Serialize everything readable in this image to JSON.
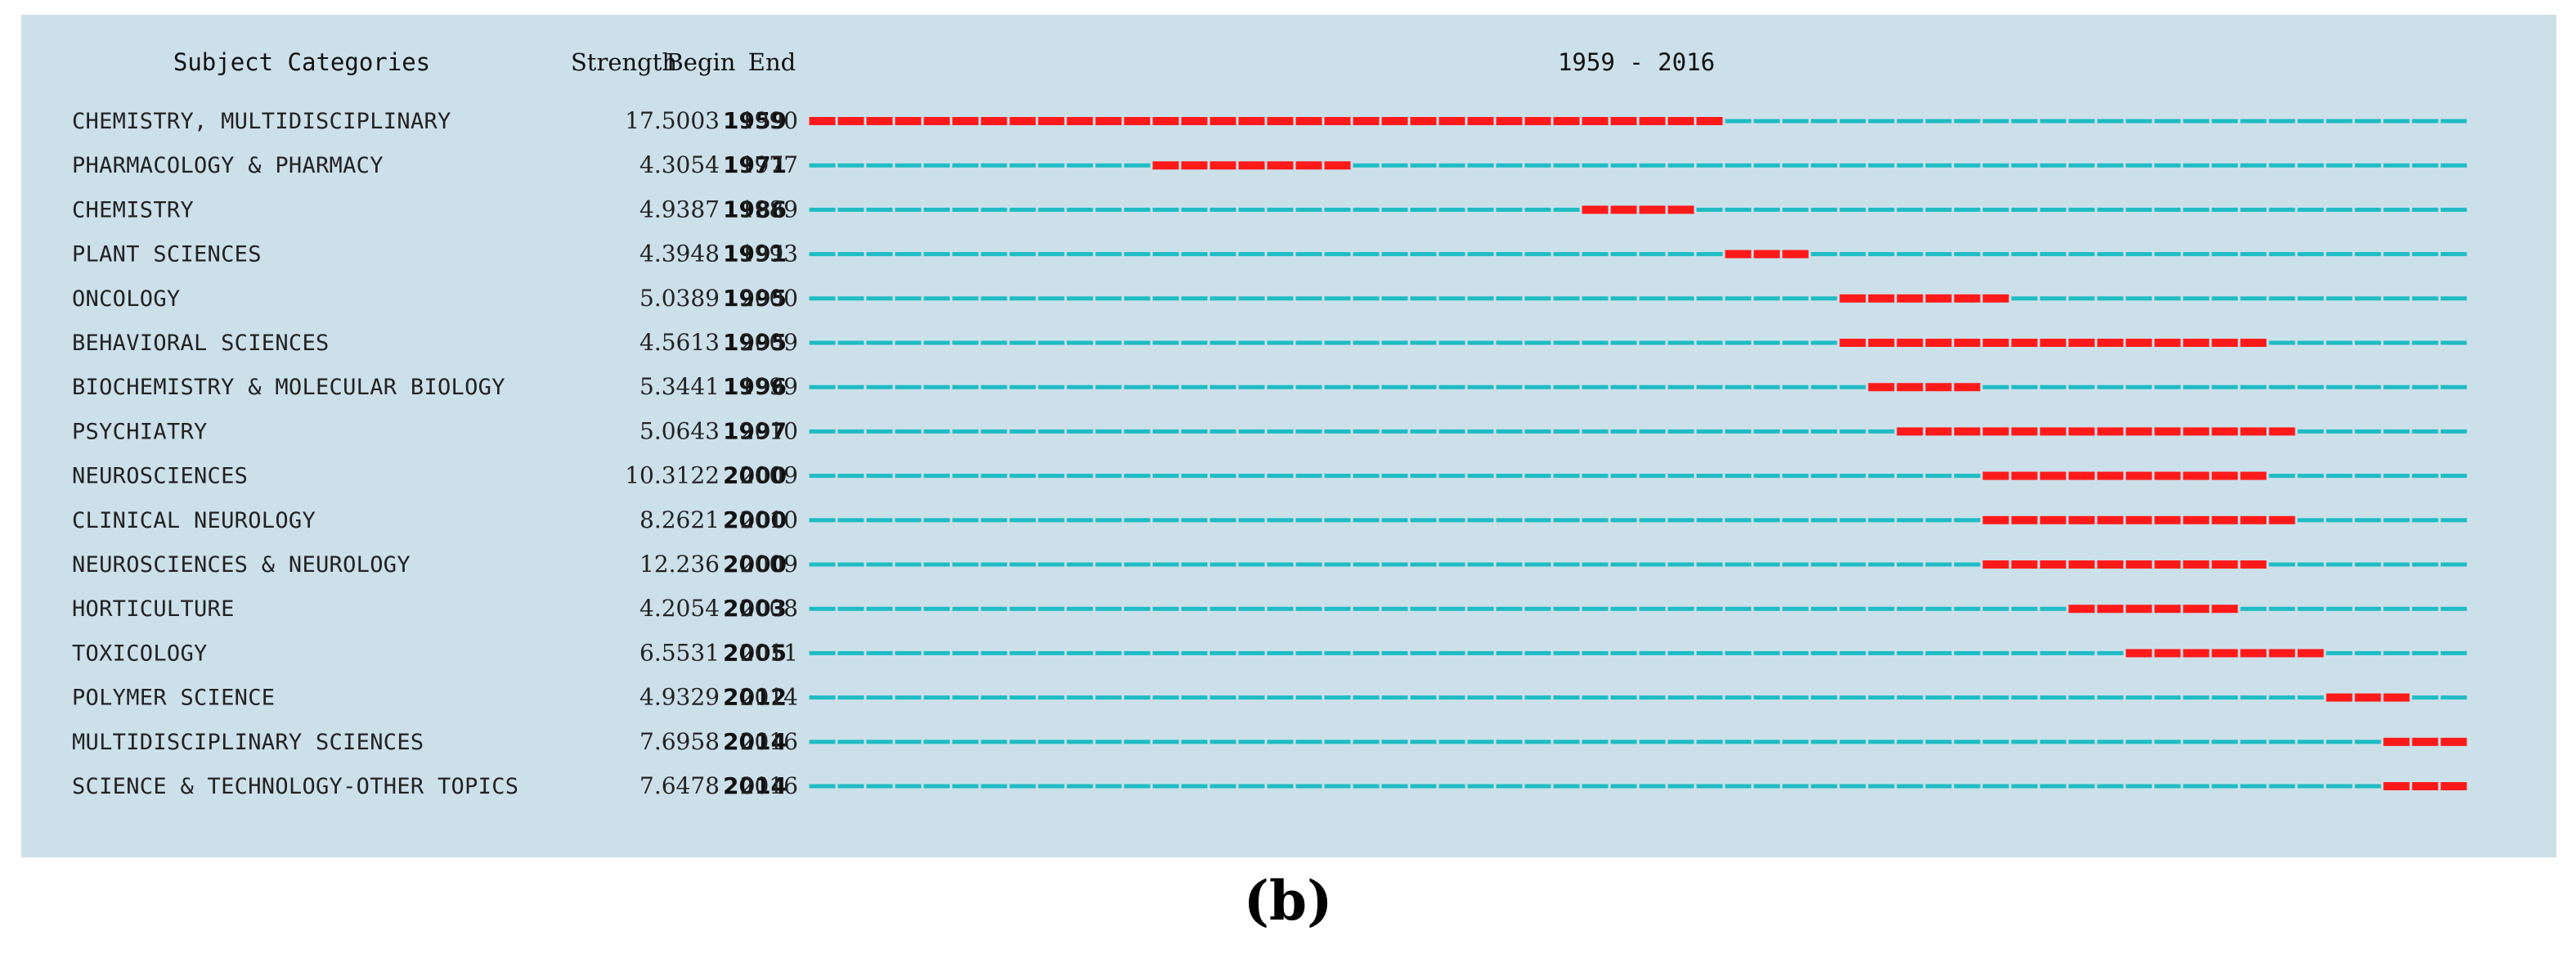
{
  "caption": "(b)",
  "colors": {
    "background": "#cce0ea",
    "baseline": "#1fbcc4",
    "burst": "#ff1a1a"
  },
  "chart_data": {
    "type": "table",
    "title": "1959 - 2016",
    "columns": [
      "Subject Categories",
      "Strength",
      "Begin",
      "End"
    ],
    "x_range": [
      1959,
      2016
    ],
    "rows": [
      {
        "category": "CHEMISTRY, MULTIDISCIPLINARY",
        "strength": "17.5003",
        "begin": 1959,
        "end": 1990
      },
      {
        "category": "PHARMACOLOGY & PHARMACY",
        "strength": "4.3054",
        "begin": 1971,
        "end": 1977
      },
      {
        "category": "CHEMISTRY",
        "strength": "4.9387",
        "begin": 1986,
        "end": 1989
      },
      {
        "category": "PLANT SCIENCES",
        "strength": "4.3948",
        "begin": 1991,
        "end": 1993
      },
      {
        "category": "ONCOLOGY",
        "strength": "5.0389",
        "begin": 1995,
        "end": 2000
      },
      {
        "category": "BEHAVIORAL SCIENCES",
        "strength": "4.5613",
        "begin": 1995,
        "end": 2009
      },
      {
        "category": "BIOCHEMISTRY & MOLECULAR BIOLOGY",
        "strength": "5.3441",
        "begin": 1996,
        "end": 1999
      },
      {
        "category": "PSYCHIATRY",
        "strength": "5.0643",
        "begin": 1997,
        "end": 2010
      },
      {
        "category": "NEUROSCIENCES",
        "strength": "10.3122",
        "begin": 2000,
        "end": 2009
      },
      {
        "category": "CLINICAL NEUROLOGY",
        "strength": "8.2621",
        "begin": 2000,
        "end": 2010
      },
      {
        "category": "NEUROSCIENCES & NEUROLOGY",
        "strength": "12.236",
        "begin": 2000,
        "end": 2009
      },
      {
        "category": "HORTICULTURE",
        "strength": "4.2054",
        "begin": 2003,
        "end": 2008
      },
      {
        "category": "TOXICOLOGY",
        "strength": "6.5531",
        "begin": 2005,
        "end": 2011
      },
      {
        "category": "POLYMER SCIENCE",
        "strength": "4.9329",
        "begin": 2012,
        "end": 2014
      },
      {
        "category": "MULTIDISCIPLINARY SCIENCES",
        "strength": "7.6958",
        "begin": 2014,
        "end": 2016
      },
      {
        "category": "SCIENCE & TECHNOLOGY-OTHER TOPICS",
        "strength": "7.6478",
        "begin": 2014,
        "end": 2016
      }
    ]
  }
}
